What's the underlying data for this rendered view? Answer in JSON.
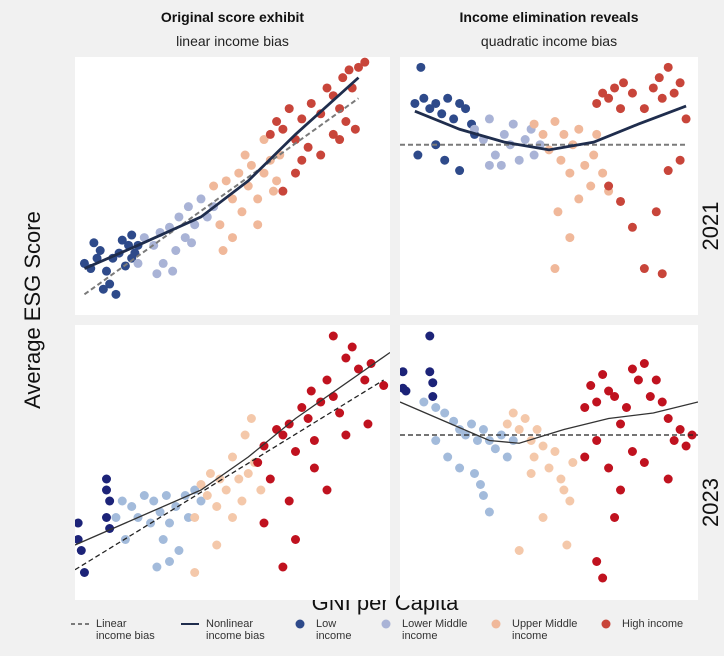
{
  "y_label": "Average ESG Score",
  "x_label": "GNI per Capita",
  "chart_data": [
    {
      "type": "scatter",
      "title": "Original score exhibit",
      "subtitle": "linear income bias",
      "xlim": [
        0,
        100
      ],
      "ylim": [
        0,
        100
      ],
      "lines": [
        {
          "name": "Linear income bias",
          "color": "#7a7a7a",
          "style": "dashed",
          "x": [
            3,
            90
          ],
          "y": [
            8,
            84
          ]
        },
        {
          "name": "Nonlinear income bias",
          "color": "#1f2d4d",
          "style": "solid",
          "x": [
            3,
            20,
            40,
            55,
            70,
            90
          ],
          "y": [
            18,
            27,
            38,
            52,
            70,
            92
          ]
        }
      ],
      "series": [
        {
          "name": "Low income",
          "color": "#2e4a8a",
          "x": [
            3,
            5,
            7,
            8,
            10,
            11,
            12,
            14,
            15,
            16,
            17,
            18,
            19,
            13,
            9,
            6,
            18,
            20
          ],
          "y": [
            20,
            18,
            22,
            25,
            17,
            12,
            22,
            24,
            29,
            19,
            27,
            31,
            24,
            8,
            10,
            28,
            22,
            27
          ]
        },
        {
          "name": "Lower Middle income",
          "color": "#a9b3d6",
          "x": [
            20,
            22,
            25,
            27,
            28,
            30,
            32,
            33,
            35,
            36,
            38,
            40,
            42,
            44,
            31,
            26,
            37
          ],
          "y": [
            20,
            30,
            27,
            32,
            20,
            34,
            25,
            38,
            30,
            42,
            35,
            45,
            38,
            42,
            17,
            16,
            28
          ]
        },
        {
          "name": "Upper Middle income",
          "color": "#f0b89a",
          "x": [
            44,
            46,
            48,
            50,
            52,
            53,
            55,
            56,
            58,
            60,
            62,
            63,
            65,
            50,
            47,
            58,
            64,
            54,
            60
          ],
          "y": [
            50,
            35,
            52,
            45,
            55,
            40,
            50,
            58,
            45,
            55,
            60,
            48,
            62,
            30,
            25,
            35,
            52,
            62,
            68
          ]
        },
        {
          "name": "High income",
          "color": "#c8453a",
          "x": [
            62,
            64,
            66,
            68,
            70,
            72,
            74,
            75,
            78,
            80,
            82,
            84,
            85,
            87,
            88,
            90,
            92,
            86,
            82,
            78,
            70,
            66,
            72,
            89,
            84
          ],
          "y": [
            70,
            75,
            72,
            80,
            68,
            76,
            65,
            82,
            78,
            88,
            85,
            80,
            92,
            95,
            88,
            96,
            98,
            75,
            70,
            62,
            55,
            48,
            60,
            72,
            68
          ]
        }
      ]
    },
    {
      "type": "scatter",
      "title": "Income elimination reveals",
      "subtitle": "quadratic income bias",
      "label": "2021",
      "xlim": [
        0,
        100
      ],
      "ylim": [
        0,
        100
      ],
      "lines": [
        {
          "name": "Linear income bias",
          "color": "#7a7a7a",
          "style": "dashed",
          "x": [
            0,
            96
          ],
          "y": [
            66,
            66
          ]
        },
        {
          "name": "Nonlinear income bias",
          "color": "#1f2d4d",
          "style": "solid",
          "x": [
            5,
            20,
            35,
            50,
            65,
            80,
            96
          ],
          "y": [
            79,
            72,
            67,
            64,
            67,
            74,
            81
          ]
        }
      ],
      "series": [
        {
          "name": "Low income",
          "color": "#2e4a8a",
          "x": [
            7,
            5,
            8,
            10,
            12,
            14,
            16,
            18,
            20,
            22,
            24,
            12,
            15,
            20,
            6,
            25
          ],
          "y": [
            96,
            82,
            84,
            80,
            82,
            78,
            84,
            76,
            82,
            80,
            74,
            66,
            60,
            56,
            62,
            70
          ]
        },
        {
          "name": "Lower Middle income",
          "color": "#a9b3d6",
          "x": [
            25,
            28,
            30,
            32,
            34,
            35,
            37,
            38,
            40,
            42,
            44,
            45,
            30,
            47
          ],
          "y": [
            72,
            68,
            76,
            62,
            58,
            70,
            66,
            74,
            60,
            68,
            72,
            62,
            58,
            66
          ]
        },
        {
          "name": "Upper Middle income",
          "color": "#f0b89a",
          "x": [
            45,
            48,
            50,
            52,
            54,
            55,
            57,
            58,
            60,
            62,
            64,
            65,
            53,
            57,
            52,
            60,
            68,
            70,
            66
          ],
          "y": [
            74,
            70,
            64,
            75,
            60,
            70,
            55,
            66,
            72,
            58,
            50,
            62,
            40,
            30,
            18,
            45,
            55,
            48,
            70
          ]
        },
        {
          "name": "High income",
          "color": "#c8453a",
          "x": [
            66,
            68,
            70,
            72,
            74,
            75,
            78,
            82,
            85,
            87,
            88,
            90,
            92,
            94,
            96,
            70,
            74,
            78,
            82,
            86,
            90,
            94,
            88
          ],
          "y": [
            82,
            86,
            84,
            88,
            80,
            90,
            86,
            80,
            88,
            92,
            84,
            96,
            86,
            90,
            76,
            50,
            44,
            34,
            18,
            40,
            56,
            60,
            16
          ]
        }
      ]
    },
    {
      "type": "scatter",
      "xlim": [
        0,
        100
      ],
      "ylim": [
        0,
        100
      ],
      "lines": [
        {
          "name": "Linear income bias",
          "color": "#222222",
          "style": "dashed",
          "x": [
            0,
            98
          ],
          "y": [
            11,
            80
          ]
        },
        {
          "name": "Nonlinear income bias",
          "color": "#333333",
          "style": "solid",
          "x": [
            0,
            20,
            40,
            55,
            70,
            90,
            100
          ],
          "y": [
            20,
            30,
            40,
            52,
            66,
            82,
            90
          ]
        }
      ],
      "series": [
        {
          "name": "Low income",
          "color": "#1c2378",
          "x": [
            1,
            1,
            2,
            3,
            10,
            10,
            11,
            10,
            11
          ],
          "y": [
            28,
            22,
            18,
            10,
            44,
            40,
            36,
            30,
            26
          ]
        },
        {
          "name": "Lower Middle income",
          "color": "#a3bbdb",
          "x": [
            13,
            15,
            18,
            20,
            22,
            24,
            25,
            27,
            28,
            29,
            30,
            32,
            33,
            35,
            36,
            38,
            30,
            26,
            40,
            16
          ],
          "y": [
            30,
            36,
            34,
            30,
            38,
            28,
            36,
            32,
            22,
            38,
            28,
            34,
            18,
            38,
            30,
            40,
            14,
            12,
            36,
            22
          ]
        },
        {
          "name": "Upper Middle income",
          "color": "#f4c8aa",
          "x": [
            38,
            40,
            42,
            43,
            45,
            46,
            48,
            50,
            52,
            53,
            55,
            54,
            57,
            59,
            50,
            45,
            38,
            56
          ],
          "y": [
            30,
            42,
            38,
            46,
            34,
            44,
            40,
            52,
            44,
            36,
            46,
            60,
            50,
            40,
            30,
            20,
            10,
            66
          ]
        },
        {
          "name": "High income",
          "color": "#c0121f",
          "x": [
            58,
            60,
            62,
            64,
            66,
            68,
            70,
            72,
            74,
            75,
            76,
            78,
            80,
            82,
            84,
            86,
            88,
            90,
            92,
            94,
            86,
            80,
            76,
            68,
            70,
            66,
            60,
            93,
            98,
            82
          ],
          "y": [
            50,
            56,
            44,
            62,
            60,
            64,
            54,
            70,
            66,
            76,
            58,
            72,
            80,
            74,
            68,
            88,
            92,
            84,
            80,
            86,
            60,
            40,
            48,
            36,
            22,
            12,
            28,
            64,
            78,
            96
          ]
        }
      ]
    },
    {
      "type": "scatter",
      "label": "2023",
      "xlim": [
        0,
        100
      ],
      "ylim": [
        0,
        100
      ],
      "lines": [
        {
          "name": "Linear income bias",
          "color": "#222222",
          "style": "dashed",
          "x": [
            0,
            100
          ],
          "y": [
            60,
            60
          ]
        },
        {
          "name": "Nonlinear income bias",
          "color": "#333333",
          "style": "solid",
          "x": [
            0,
            15,
            30,
            40,
            55,
            70,
            85,
            100
          ],
          "y": [
            72,
            65,
            58,
            57,
            62,
            66,
            68,
            72
          ]
        }
      ],
      "series": [
        {
          "name": "Low income",
          "color": "#1c2378",
          "x": [
            1,
            1,
            2,
            10,
            10,
            11,
            11
          ],
          "y": [
            83,
            77,
            76,
            96,
            83,
            79,
            74
          ]
        },
        {
          "name": "Lower Middle income",
          "color": "#a3bbdb",
          "x": [
            8,
            12,
            15,
            18,
            20,
            22,
            24,
            26,
            28,
            30,
            32,
            34,
            12,
            16,
            20,
            25,
            28,
            30,
            36,
            38,
            27
          ],
          "y": [
            72,
            70,
            68,
            65,
            62,
            60,
            64,
            58,
            62,
            58,
            55,
            60,
            58,
            52,
            48,
            46,
            38,
            32,
            52,
            58,
            42
          ]
        },
        {
          "name": "Upper Middle income",
          "color": "#f4c8aa",
          "x": [
            36,
            38,
            40,
            42,
            44,
            45,
            46,
            48,
            50,
            52,
            54,
            55,
            57,
            58,
            40,
            48,
            56,
            44
          ],
          "y": [
            64,
            68,
            62,
            66,
            58,
            52,
            62,
            56,
            48,
            54,
            44,
            40,
            36,
            50,
            18,
            30,
            20,
            46
          ]
        },
        {
          "name": "High income",
          "color": "#c0121f",
          "x": [
            62,
            64,
            66,
            68,
            70,
            72,
            74,
            76,
            78,
            80,
            82,
            84,
            86,
            88,
            90,
            92,
            94,
            96,
            98,
            62,
            66,
            70,
            74,
            78,
            82,
            66,
            68,
            72,
            90
          ],
          "y": [
            70,
            78,
            72,
            82,
            76,
            74,
            64,
            70,
            84,
            80,
            86,
            74,
            80,
            72,
            66,
            58,
            62,
            56,
            60,
            52,
            58,
            48,
            40,
            54,
            50,
            14,
            8,
            30,
            44
          ]
        }
      ]
    }
  ]
}
